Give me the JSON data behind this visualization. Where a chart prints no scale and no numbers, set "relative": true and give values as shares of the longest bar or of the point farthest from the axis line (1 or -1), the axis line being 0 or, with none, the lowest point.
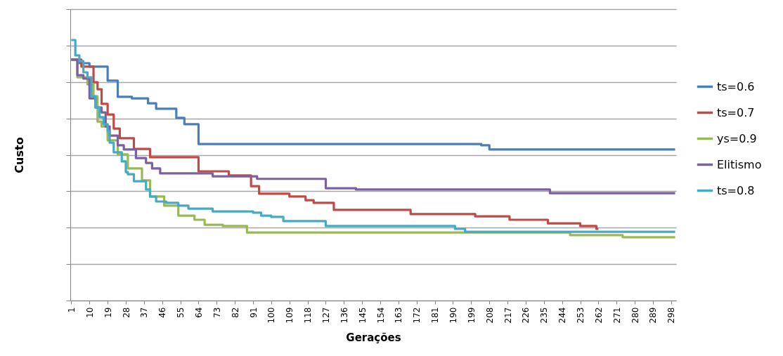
{
  "chart_data": {
    "type": "step",
    "xlabel": "Gerações",
    "ylabel": "Custo",
    "relative": true,
    "grid": "y",
    "legend": "right",
    "xlim": [
      0.5,
      300.5
    ],
    "xticks": [
      1,
      10,
      19,
      28,
      37,
      46,
      55,
      64,
      73,
      82,
      91,
      100,
      109,
      118,
      127,
      136,
      145,
      154,
      163,
      172,
      181,
      190,
      199,
      208,
      217,
      226,
      235,
      244,
      253,
      262,
      271,
      280,
      289,
      298
    ],
    "series": [
      {
        "name": "ts=0.6",
        "color": "#4a7ebb",
        "x": [
          1,
          5,
          10,
          19,
          24,
          31,
          39,
          43,
          53,
          57,
          64,
          204,
          208,
          300
        ],
        "values": [
          0.925,
          0.911,
          0.898,
          0.844,
          0.782,
          0.776,
          0.757,
          0.736,
          0.701,
          0.677,
          0.601,
          0.596,
          0.58,
          0.58
        ]
      },
      {
        "name": "ts=0.7",
        "color": "#be4b48",
        "x": [
          1,
          6,
          12,
          14,
          16,
          19,
          22,
          25,
          32,
          40,
          64,
          79,
          90,
          94,
          109,
          117,
          121,
          131,
          169,
          201,
          218,
          237,
          253,
          261,
          262
        ],
        "values": [
          0.925,
          0.898,
          0.838,
          0.811,
          0.755,
          0.714,
          0.66,
          0.623,
          0.582,
          0.55,
          0.496,
          0.48,
          0.439,
          0.41,
          0.399,
          0.385,
          0.375,
          0.348,
          0.332,
          0.323,
          0.31,
          0.296,
          0.286,
          0.275,
          0.275
        ]
      },
      {
        "name": "ys=0.9",
        "color": "#98b954",
        "x": [
          1,
          4,
          9,
          12,
          14,
          16,
          19,
          24,
          29,
          36,
          40,
          47,
          54,
          62,
          67,
          76,
          88,
          248,
          274,
          300
        ],
        "values": [
          0.925,
          0.857,
          0.83,
          0.784,
          0.687,
          0.668,
          0.615,
          0.561,
          0.507,
          0.461,
          0.399,
          0.364,
          0.326,
          0.31,
          0.291,
          0.286,
          0.261,
          0.251,
          0.243,
          0.243
        ]
      },
      {
        "name": "Elitismo",
        "color": "#7d60a0",
        "x": [
          1,
          4,
          7,
          10,
          13,
          16,
          18,
          20,
          24,
          27,
          33,
          38,
          41,
          45,
          71,
          93,
          127,
          142,
          238,
          300
        ],
        "values": [
          0.925,
          0.865,
          0.852,
          0.776,
          0.741,
          0.722,
          0.668,
          0.633,
          0.596,
          0.58,
          0.547,
          0.528,
          0.507,
          0.488,
          0.477,
          0.467,
          0.431,
          0.426,
          0.412,
          0.412
        ]
      },
      {
        "name": "ts=0.8",
        "color": "#46aac5",
        "x": [
          1,
          3,
          5,
          7,
          9,
          11,
          13,
          15,
          17,
          19,
          20,
          22,
          26,
          28,
          29,
          32,
          38,
          40,
          43,
          48,
          54,
          59,
          71,
          91,
          95,
          100,
          106,
          127,
          191,
          196,
          300
        ],
        "values": [
          1.0,
          0.941,
          0.919,
          0.876,
          0.857,
          0.784,
          0.741,
          0.704,
          0.677,
          0.65,
          0.606,
          0.569,
          0.534,
          0.493,
          0.485,
          0.458,
          0.426,
          0.399,
          0.38,
          0.375,
          0.364,
          0.353,
          0.342,
          0.337,
          0.326,
          0.321,
          0.305,
          0.286,
          0.275,
          0.264,
          0.264
        ]
      }
    ]
  }
}
